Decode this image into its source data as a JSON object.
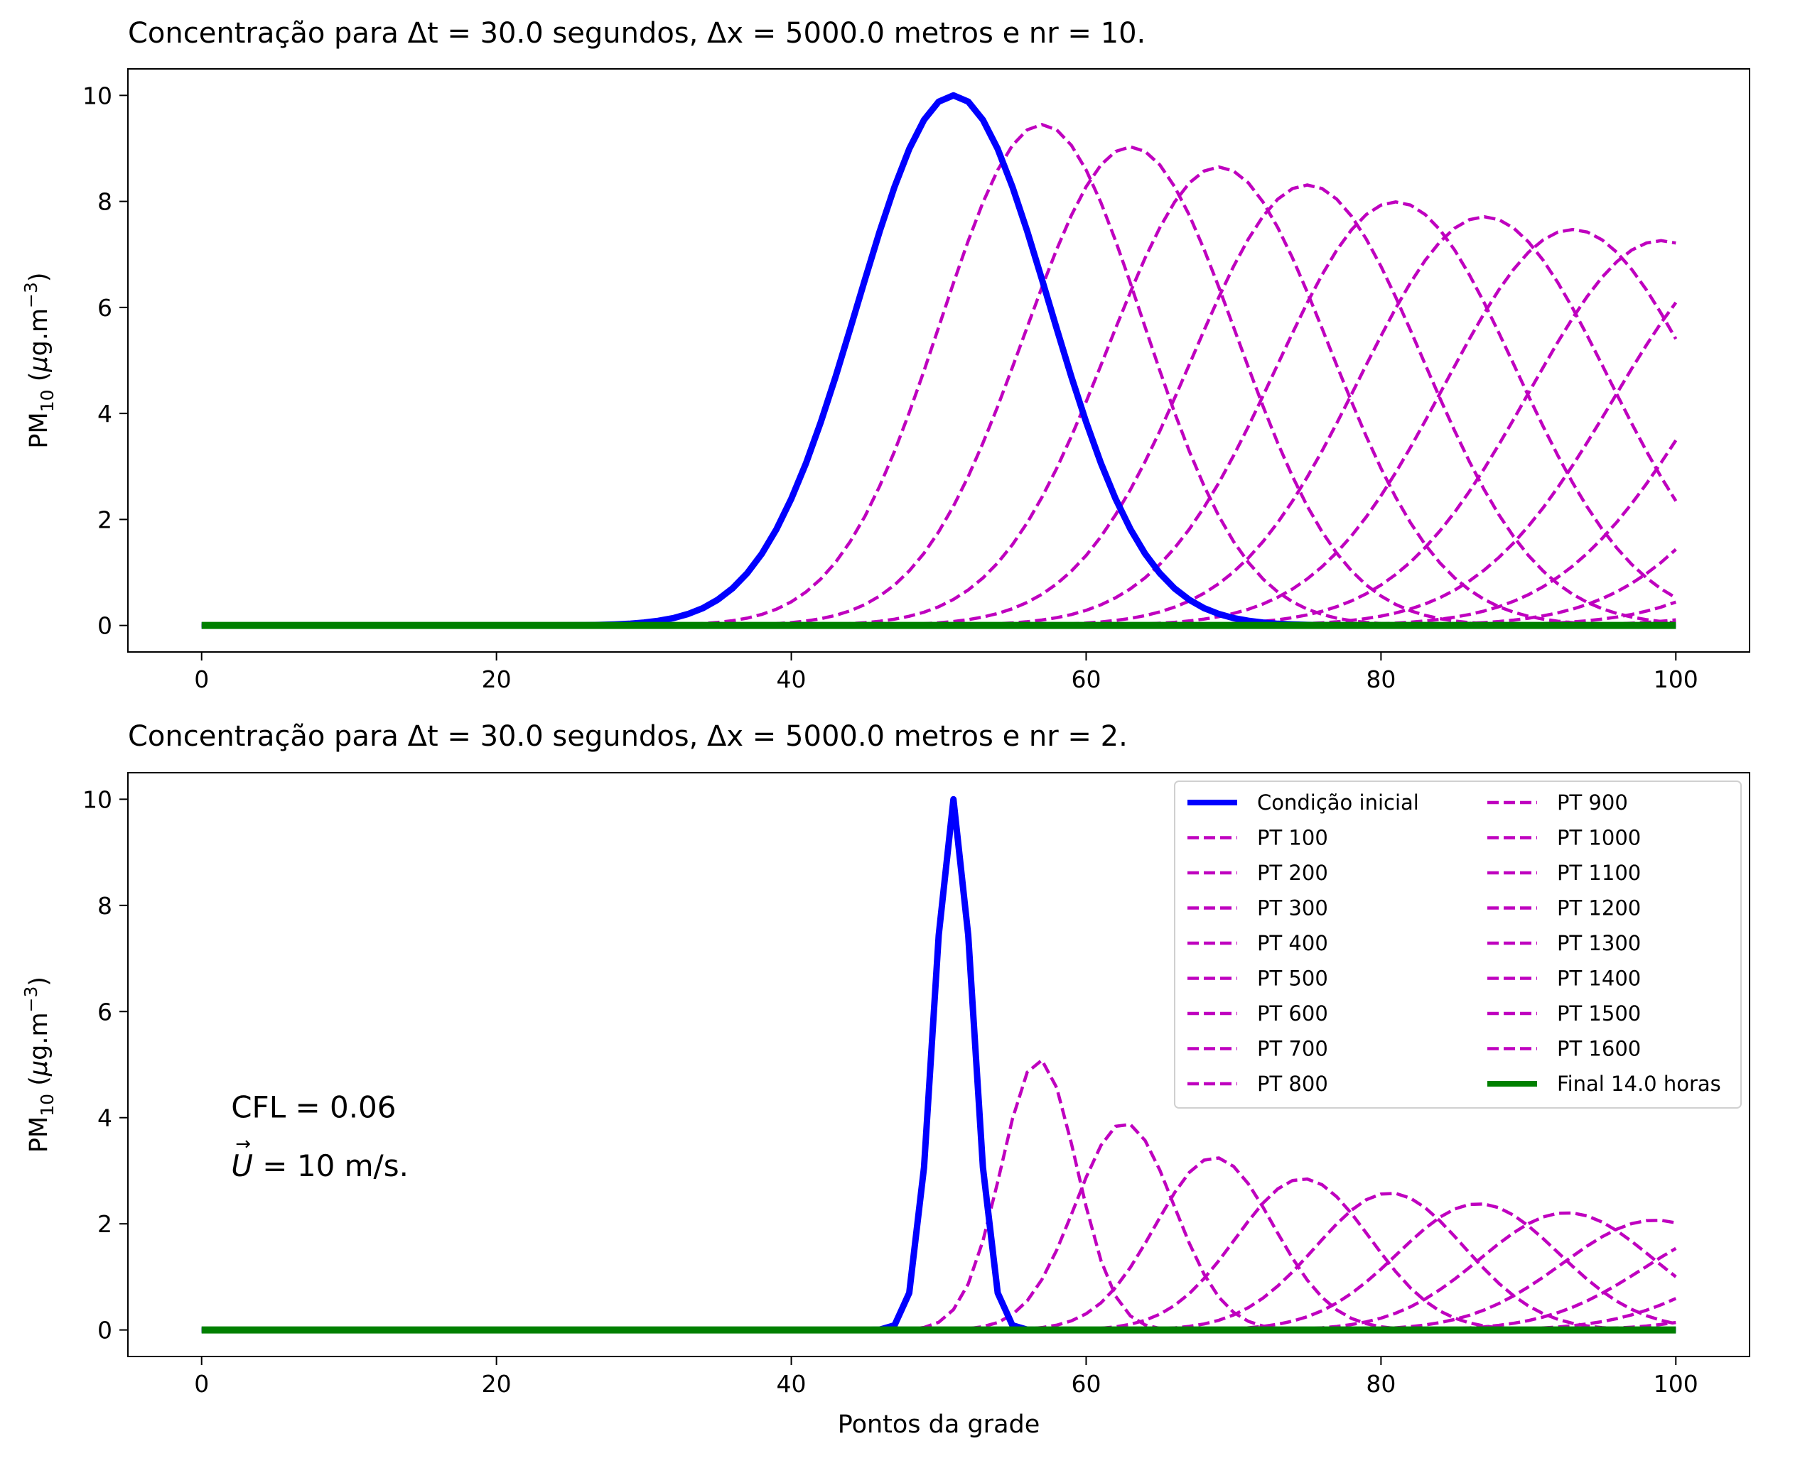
{
  "chart_data": [
    {
      "type": "line",
      "title": "Concentração para Δt = 30.0 segundos, Δx = 5000.0 metros e nr = 10.",
      "xlabel": "",
      "ylabel": "PM10 (μg.m−3)",
      "ylabel_parts": {
        "base": "PM",
        "sub": "10",
        "unit_open": " (",
        "mu": "μ",
        "unit_mid": "g.m",
        "sup": "−3",
        "unit_close": ")"
      },
      "xlim": [
        -5,
        105
      ],
      "ylim": [
        -0.5,
        10.5
      ],
      "xticks": [
        "0",
        "20",
        "40",
        "60",
        "80",
        "100"
      ],
      "yticks": [
        "0",
        "2",
        "4",
        "6",
        "8",
        "10"
      ],
      "grid": false,
      "initial_condition": {
        "center": 51,
        "sigma": 6.5,
        "peak": 10.0,
        "color": "#0000ff",
        "style": "solid"
      },
      "series": [
        {
          "center": 57,
          "peak": 9.45
        },
        {
          "center": 63,
          "peak": 9.03
        },
        {
          "center": 69,
          "peak": 8.65
        },
        {
          "center": 75,
          "peak": 8.31
        },
        {
          "center": 81,
          "peak": 7.99
        },
        {
          "center": 87,
          "peak": 7.71
        },
        {
          "center": 93,
          "peak": 7.47
        },
        {
          "center": 99,
          "peak": 7.26
        },
        {
          "center": 105,
          "peak": 7.06
        },
        {
          "center": 111,
          "peak": 6.88
        },
        {
          "center": 117,
          "peak": 6.72
        },
        {
          "center": 123,
          "peak": 6.57
        },
        {
          "center": 129,
          "peak": 6.43
        },
        {
          "center": 135,
          "peak": 6.3
        },
        {
          "center": 141,
          "peak": 6.18
        },
        {
          "center": 147,
          "peak": 6.07
        }
      ],
      "series_color": "#bf00bf",
      "final": {
        "value": 0,
        "color": "#008000"
      }
    },
    {
      "type": "line",
      "title": "Concentração para Δt = 30.0 segundos, Δx = 5000.0 metros e nr = 2.",
      "xlabel": "Pontos da grade",
      "ylabel": "PM10 (μg.m−3)",
      "ylabel_parts": {
        "base": "PM",
        "sub": "10",
        "unit_open": " (",
        "mu": "μ",
        "unit_mid": "g.m",
        "sup": "−3",
        "unit_close": ")"
      },
      "xlim": [
        -5,
        105
      ],
      "ylim": [
        -0.5,
        10.5
      ],
      "xticks": [
        "0",
        "20",
        "40",
        "60",
        "80",
        "100"
      ],
      "yticks": [
        "0",
        "2",
        "4",
        "6",
        "8",
        "10"
      ],
      "grid": false,
      "initial_condition": {
        "center": 51,
        "sigma": 1.3,
        "peak": 10.0,
        "color": "#0000ff",
        "style": "solid"
      },
      "series": [
        {
          "center": 56.8,
          "peak": 5.1
        },
        {
          "center": 62.6,
          "peak": 3.9
        },
        {
          "center": 68.7,
          "peak": 3.25
        },
        {
          "center": 74.7,
          "peak": 2.85
        },
        {
          "center": 80.6,
          "peak": 2.58
        },
        {
          "center": 86.6,
          "peak": 2.38
        },
        {
          "center": 92.6,
          "peak": 2.21
        },
        {
          "center": 98.6,
          "peak": 2.07
        },
        {
          "center": 104.6,
          "peak": 1.95
        },
        {
          "center": 110.6,
          "peak": 1.85
        },
        {
          "center": 116.6,
          "peak": 1.76
        },
        {
          "center": 122.6,
          "peak": 1.68
        },
        {
          "center": 128.6,
          "peak": 1.61
        },
        {
          "center": 134.6,
          "peak": 1.55
        },
        {
          "center": 140.6,
          "peak": 1.49
        },
        {
          "center": 146.6,
          "peak": 1.44
        }
      ],
      "series_color": "#bf00bf",
      "final": {
        "value": 0,
        "color": "#008000"
      },
      "annotation": {
        "line1": "CFL = 0.06",
        "line2_symbol": "U",
        "line2_arrow": "→",
        "line2_rest": " = 10 m/s."
      },
      "legend": {
        "placement": "top-right",
        "columns": 2,
        "entries": [
          {
            "label": "Condição inicial",
            "kind": "initial"
          },
          {
            "label": "PT 100",
            "kind": "pt"
          },
          {
            "label": "PT 200",
            "kind": "pt"
          },
          {
            "label": "PT 300",
            "kind": "pt"
          },
          {
            "label": "PT 400",
            "kind": "pt"
          },
          {
            "label": "PT 500",
            "kind": "pt"
          },
          {
            "label": "PT 600",
            "kind": "pt"
          },
          {
            "label": "PT 700",
            "kind": "pt"
          },
          {
            "label": "PT 800",
            "kind": "pt"
          },
          {
            "label": "PT 900",
            "kind": "pt"
          },
          {
            "label": "PT 1000",
            "kind": "pt"
          },
          {
            "label": "PT 1100",
            "kind": "pt"
          },
          {
            "label": "PT 1200",
            "kind": "pt"
          },
          {
            "label": "PT 1300",
            "kind": "pt"
          },
          {
            "label": "PT 1400",
            "kind": "pt"
          },
          {
            "label": "PT 1500",
            "kind": "pt"
          },
          {
            "label": "PT 1600",
            "kind": "pt"
          },
          {
            "label": "Final 14.0 horas",
            "kind": "final"
          }
        ]
      }
    }
  ]
}
